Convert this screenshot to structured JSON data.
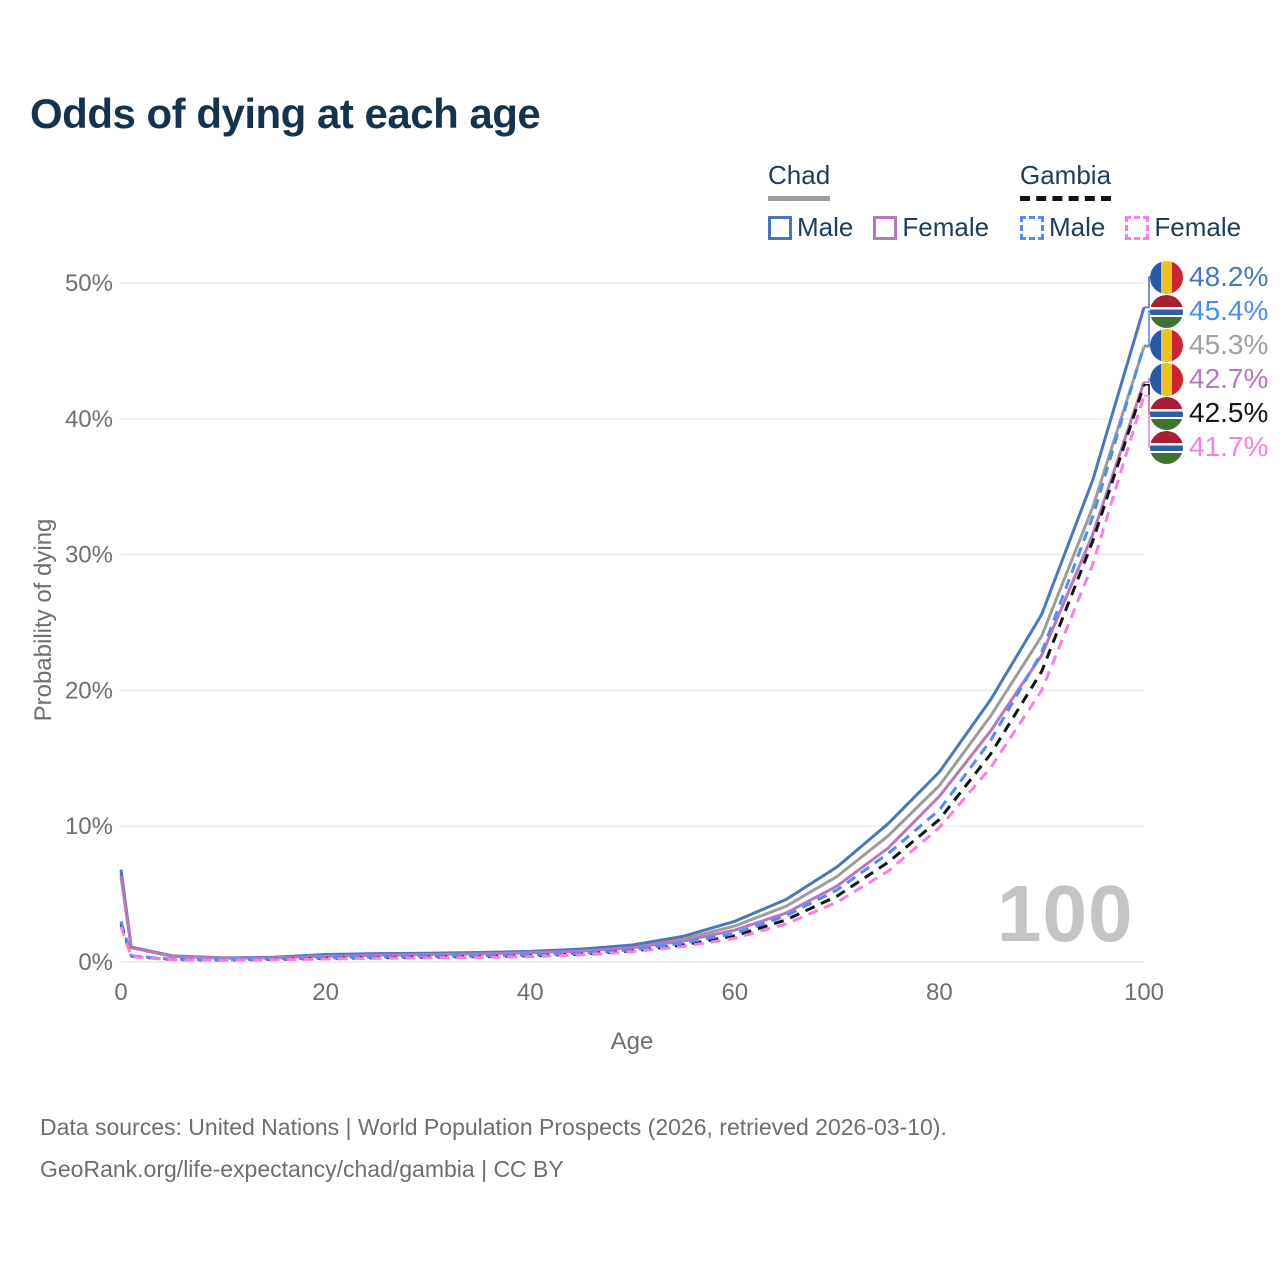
{
  "title": "Odds of dying at each age",
  "watermark": "100",
  "legend": {
    "groups": [
      {
        "label": "Chad",
        "line_style": "solid",
        "underline_color": "#9E9E9E",
        "items": [
          {
            "label": "Male",
            "color": "#4A77BD",
            "dashed": false
          },
          {
            "label": "Female",
            "color": "#B678BE",
            "dashed": false
          }
        ]
      },
      {
        "label": "Gambia",
        "line_style": "dashed",
        "underline_color": "#141414",
        "items": [
          {
            "label": "Male",
            "color": "#4E8DF5",
            "dashed": true
          },
          {
            "label": "Female",
            "color": "#FC7CE0",
            "dashed": true
          }
        ]
      }
    ]
  },
  "footer": {
    "line1": "Data sources: United Nations | World Population Prospects (2026, retrieved 2026-03-10).",
    "line2": "GeoRank.org/life-expectancy/chad/gambia | CC BY"
  },
  "chart_data": {
    "type": "line",
    "title": "Odds of dying at each age",
    "xlabel": "Age",
    "ylabel": "Probability of dying",
    "xlim": [
      0,
      100
    ],
    "ylim": [
      0,
      50
    ],
    "xticks": [
      0,
      20,
      40,
      60,
      80,
      100
    ],
    "yticks": [
      0,
      10,
      20,
      30,
      40,
      50
    ],
    "ytick_suffix": "%",
    "grid": "horizontal",
    "legend_position": "top-right",
    "x": [
      0,
      1,
      5,
      10,
      15,
      20,
      25,
      30,
      35,
      40,
      45,
      50,
      55,
      60,
      65,
      70,
      75,
      80,
      85,
      90,
      95,
      100
    ],
    "series": [
      {
        "name": "Chad",
        "sex": "both",
        "color": "#9C9C9C",
        "dashed": false,
        "end_slot": 2,
        "values": [
          6.55,
          1.08,
          0.43,
          0.29,
          0.33,
          0.48,
          0.56,
          0.6,
          0.65,
          0.73,
          0.88,
          1.15,
          1.7,
          2.65,
          4.1,
          6.3,
          9.3,
          13.0,
          18.1,
          24.0,
          33.5,
          45.3
        ]
      },
      {
        "name": "Chad Male",
        "sex": "male",
        "color": "#4A77BD",
        "dashed": false,
        "end_slot": 0,
        "values": [
          6.8,
          1.1,
          0.45,
          0.3,
          0.35,
          0.55,
          0.62,
          0.65,
          0.7,
          0.78,
          0.95,
          1.25,
          1.9,
          3.0,
          4.6,
          7.0,
          10.2,
          14.0,
          19.3,
          25.6,
          35.5,
          48.2
        ]
      },
      {
        "name": "Chad Female",
        "sex": "female",
        "color": "#B678BE",
        "dashed": false,
        "end_slot": 3,
        "values": [
          6.3,
          1.05,
          0.42,
          0.28,
          0.3,
          0.42,
          0.5,
          0.55,
          0.6,
          0.68,
          0.8,
          1.05,
          1.55,
          2.35,
          3.6,
          5.6,
          8.4,
          12.2,
          17.0,
          22.6,
          31.5,
          42.7
        ]
      },
      {
        "name": "Gambia",
        "sex": "both",
        "color": "#141414",
        "dashed": true,
        "end_slot": 4,
        "values": [
          2.8,
          0.43,
          0.18,
          0.14,
          0.19,
          0.27,
          0.32,
          0.36,
          0.4,
          0.46,
          0.58,
          0.82,
          1.27,
          1.92,
          3.1,
          4.85,
          7.35,
          10.5,
          15.3,
          21.4,
          31.0,
          42.5
        ]
      },
      {
        "name": "Gambia Male",
        "sex": "male",
        "color": "#4E8DF5",
        "dashed": true,
        "end_slot": 1,
        "values": [
          3.0,
          0.45,
          0.2,
          0.16,
          0.22,
          0.32,
          0.38,
          0.42,
          0.46,
          0.52,
          0.65,
          0.9,
          1.4,
          2.1,
          3.4,
          5.3,
          8.0,
          11.2,
          16.3,
          22.8,
          32.8,
          45.4
        ]
      },
      {
        "name": "Gambia Female",
        "sex": "female",
        "color": "#FC7CE0",
        "dashed": true,
        "end_slot": 5,
        "values": [
          2.6,
          0.4,
          0.17,
          0.13,
          0.16,
          0.22,
          0.27,
          0.3,
          0.34,
          0.4,
          0.52,
          0.75,
          1.15,
          1.75,
          2.8,
          4.4,
          6.7,
          9.9,
          14.3,
          20.0,
          29.3,
          41.7
        ]
      }
    ],
    "end_labels": [
      {
        "text": "48.2%",
        "series": "Chad Male",
        "flag": "chad",
        "color": "#4A77BD"
      },
      {
        "text": "45.4%",
        "series": "Gambia Male",
        "flag": "gambia",
        "color": "#4E8DF5"
      },
      {
        "text": "45.3%",
        "series": "Chad",
        "flag": "chad",
        "color": "#A0A0A0"
      },
      {
        "text": "42.7%",
        "series": "Chad Female",
        "flag": "chad",
        "color": "#B678BE"
      },
      {
        "text": "42.5%",
        "series": "Gambia",
        "flag": "gambia",
        "color": "#141414"
      },
      {
        "text": "41.7%",
        "series": "Gambia Female",
        "flag": "gambia",
        "color": "#FC7CE0"
      }
    ],
    "age_indicator": "100"
  }
}
